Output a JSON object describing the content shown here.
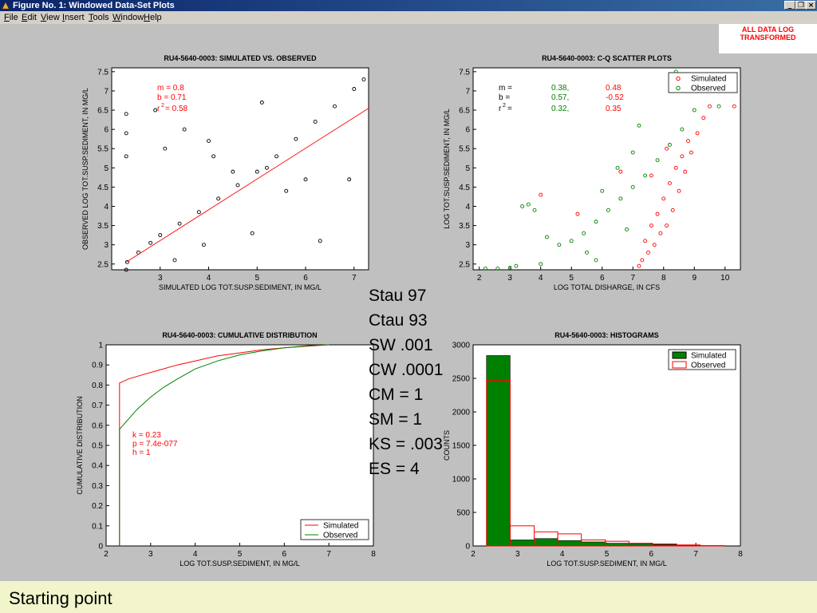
{
  "window": {
    "title": "Figure No. 1: Windowed Data-Set Plots",
    "icons": [
      "app-icon",
      "minimize-icon",
      "restore-icon",
      "close-icon"
    ],
    "menu": [
      "File",
      "Edit",
      "View",
      "Insert",
      "Tools",
      "Window",
      "Help"
    ]
  },
  "badge": {
    "line1": "ALL DATA LOG",
    "line2": "TRANSFORMED"
  },
  "stats": [
    "Stau 97",
    "Ctau 93",
    "SW .001",
    "CW .0001",
    "CM = 1",
    "SM = 1",
    "KS = .003",
    "ES = 4"
  ],
  "footer": {
    "text": "Starting point"
  },
  "colors": {
    "simulated": "#ff0000",
    "observed": "#008000",
    "bar_fill": "#008000",
    "bg": "#c0c0c0",
    "footer": "#f2f5cc"
  },
  "chart_data": [
    {
      "type": "scatter",
      "title": "RU4-5640-0003: SIMULATED VS. OBSERVED",
      "xlabel": "SIMULATED LOG TOT.SUSP.SEDIMENT, IN MG/L",
      "ylabel": "OBSERVED LOG TOT.SUSP.SEDIMENT, IN MG/L",
      "xlim": [
        2.0,
        7.3
      ],
      "ylim": [
        2.35,
        7.6
      ],
      "xticks": [
        "3",
        "4",
        "5",
        "6",
        "7"
      ],
      "yticks": [
        "2.5",
        "3",
        "3.5",
        "4",
        "4.5",
        "5",
        "5.5",
        "6",
        "6.5",
        "7",
        "7.5"
      ],
      "annotations": [
        "m = 0.8",
        "b = 0.71",
        "r",
        "2",
        "= 0.58"
      ],
      "fit_line": {
        "slope": 0.8,
        "intercept": 0.71,
        "x": [
          2.3,
          7.3
        ]
      },
      "series": [
        {
          "color": "#000000",
          "marker": "open-circle",
          "x": [
            2.3,
            2.32,
            2.55,
            2.8,
            3.0,
            3.4,
            3.8,
            4.2,
            4.6,
            5.0,
            5.4,
            5.8,
            6.2,
            6.6,
            7.0,
            7.2,
            2.3,
            2.3,
            2.3,
            3.1,
            3.5,
            4.1,
            4.5,
            5.2,
            5.6,
            6.0,
            3.3,
            3.9,
            4.9,
            6.3,
            6.9,
            2.9,
            4.0,
            5.1
          ],
          "y": [
            2.35,
            2.55,
            2.8,
            3.05,
            3.25,
            3.55,
            3.85,
            4.2,
            4.55,
            4.9,
            5.3,
            5.75,
            6.2,
            6.6,
            7.05,
            7.3,
            6.4,
            5.9,
            5.3,
            5.5,
            6.0,
            5.3,
            4.9,
            5.0,
            4.4,
            4.7,
            2.6,
            3.0,
            3.3,
            3.1,
            4.7,
            6.5,
            5.7,
            6.7
          ]
        }
      ]
    },
    {
      "type": "scatter",
      "title": "RU4-5640-0003: C-Q SCATTER PLOTS",
      "xlabel": "LOG TOTAL DISHARGE, IN CFS",
      "ylabel": "LOG TOT.SUSP.SEDIMENT, IN MG/L",
      "xlim": [
        1.8,
        10.5
      ],
      "ylim": [
        2.35,
        7.6
      ],
      "xticks": [
        "2",
        "3",
        "4",
        "5",
        "6",
        "7",
        "8",
        "9",
        "10"
      ],
      "yticks": [
        "2.5",
        "3",
        "3.5",
        "4",
        "4.5",
        "5",
        "5.5",
        "6",
        "6.5",
        "7",
        "7.5"
      ],
      "stats_table": {
        "rows": [
          "m =",
          "b =",
          "r",
          "2",
          "="
        ],
        "observed": [
          "0.38,",
          "0.57,",
          "0.32,"
        ],
        "simulated": [
          "0.48",
          "-0.52",
          "0.35"
        ]
      },
      "legend": [
        "Simulated",
        "Observed"
      ],
      "legend_position": "top-right",
      "series": [
        {
          "name": "Simulated",
          "color": "#ff0000",
          "x": [
            7.3,
            7.5,
            7.7,
            7.9,
            8.1,
            8.3,
            8.5,
            8.7,
            8.9,
            9.1,
            9.3,
            7.8,
            8.0,
            8.2,
            8.4,
            8.6,
            8.8,
            7.2,
            7.4,
            7.6,
            9.5,
            10.3,
            8.9,
            8.1,
            7.6,
            4.0,
            5.2,
            6.6
          ],
          "y": [
            2.6,
            2.8,
            3.0,
            3.3,
            3.5,
            3.9,
            4.4,
            4.9,
            5.4,
            5.9,
            6.3,
            3.8,
            4.2,
            4.6,
            5.0,
            5.3,
            5.7,
            2.45,
            3.1,
            3.5,
            6.6,
            6.6,
            7.3,
            5.5,
            4.8,
            4.3,
            3.8,
            4.9
          ]
        },
        {
          "name": "Observed",
          "color": "#008000",
          "x": [
            3.4,
            3.6,
            3.8,
            4.2,
            4.6,
            5.0,
            5.4,
            5.8,
            6.2,
            6.6,
            7.0,
            7.4,
            7.8,
            8.2,
            8.6,
            9.0,
            9.4,
            3.0,
            4.0,
            5.5,
            6.0,
            6.5,
            7.0,
            5.8,
            6.8,
            7.2,
            9.8,
            8.4,
            2.2,
            2.6,
            3.2
          ],
          "y": [
            4.0,
            4.05,
            3.9,
            3.2,
            3.0,
            3.1,
            3.3,
            3.6,
            3.9,
            4.2,
            4.5,
            4.8,
            5.2,
            5.6,
            6.0,
            6.5,
            7.0,
            2.4,
            2.5,
            2.8,
            4.4,
            5.0,
            5.4,
            2.6,
            3.4,
            6.1,
            6.6,
            7.5,
            2.38,
            2.38,
            2.45
          ]
        }
      ]
    },
    {
      "type": "line",
      "title": "RU4-5640-0003: CUMULATIVE DISTRIBUTION",
      "xlabel": "LOG TOT.SUSP.SEDIMENT, IN MG/L",
      "ylabel": "CUMULATIVE DISTRIBUTION",
      "xlim": [
        2,
        8
      ],
      "ylim": [
        0,
        1
      ],
      "xticks": [
        "2",
        "3",
        "4",
        "5",
        "6",
        "7",
        "8"
      ],
      "yticks": [
        "0",
        "0.1",
        "0.2",
        "0.3",
        "0.4",
        "0.5",
        "0.6",
        "0.7",
        "0.8",
        "0.9",
        "1"
      ],
      "annotations": [
        "k = 0.23",
        "p = 7.4e-077",
        "h = 1"
      ],
      "legend": [
        "Simulated",
        "Observed"
      ],
      "legend_position": "bottom-right",
      "series": [
        {
          "name": "Simulated",
          "color": "#ff0000",
          "x": [
            2.3,
            2.3,
            2.5,
            2.8,
            3.2,
            3.6,
            4.0,
            4.5,
            5.0,
            5.5,
            6.0,
            6.5,
            7.0
          ],
          "y": [
            0,
            0.81,
            0.83,
            0.85,
            0.875,
            0.9,
            0.92,
            0.945,
            0.96,
            0.975,
            0.985,
            0.993,
            1.0
          ]
        },
        {
          "name": "Observed",
          "color": "#008000",
          "x": [
            2.3,
            2.3,
            2.5,
            2.7,
            3.0,
            3.3,
            3.6,
            4.0,
            4.5,
            5.0,
            5.5,
            6.0,
            6.5,
            7.0
          ],
          "y": [
            0,
            0.58,
            0.63,
            0.68,
            0.74,
            0.79,
            0.83,
            0.88,
            0.92,
            0.95,
            0.97,
            0.985,
            0.995,
            1.0
          ]
        }
      ]
    },
    {
      "type": "bar",
      "title": "RU4-5640-0003: HISTOGRAMS",
      "xlabel": "LOG TOT.SUSP.SEDIMENT, IN MG/L",
      "ylabel": "COUNTS",
      "xlim": [
        2,
        8
      ],
      "ylim": [
        0,
        3000
      ],
      "xticks": [
        "2",
        "3",
        "4",
        "5",
        "6",
        "7",
        "8"
      ],
      "yticks": [
        "0",
        "500",
        "1000",
        "1500",
        "2000",
        "2500",
        "3000"
      ],
      "legend": [
        "Simulated",
        "Observed"
      ],
      "legend_position": "top-right",
      "bin_edges": [
        2.3,
        2.83,
        3.37,
        3.9,
        4.43,
        4.97,
        5.5,
        6.03,
        6.57,
        7.1,
        7.63
      ],
      "series": [
        {
          "name": "Simulated",
          "style": "filled",
          "color": "#008000",
          "values": [
            2840,
            90,
            110,
            80,
            60,
            40,
            30,
            20,
            10,
            5
          ]
        },
        {
          "name": "Observed",
          "style": "outline",
          "color": "#ff0000",
          "values": [
            2470,
            300,
            210,
            180,
            90,
            70,
            40,
            30,
            15,
            5
          ]
        }
      ]
    }
  ]
}
